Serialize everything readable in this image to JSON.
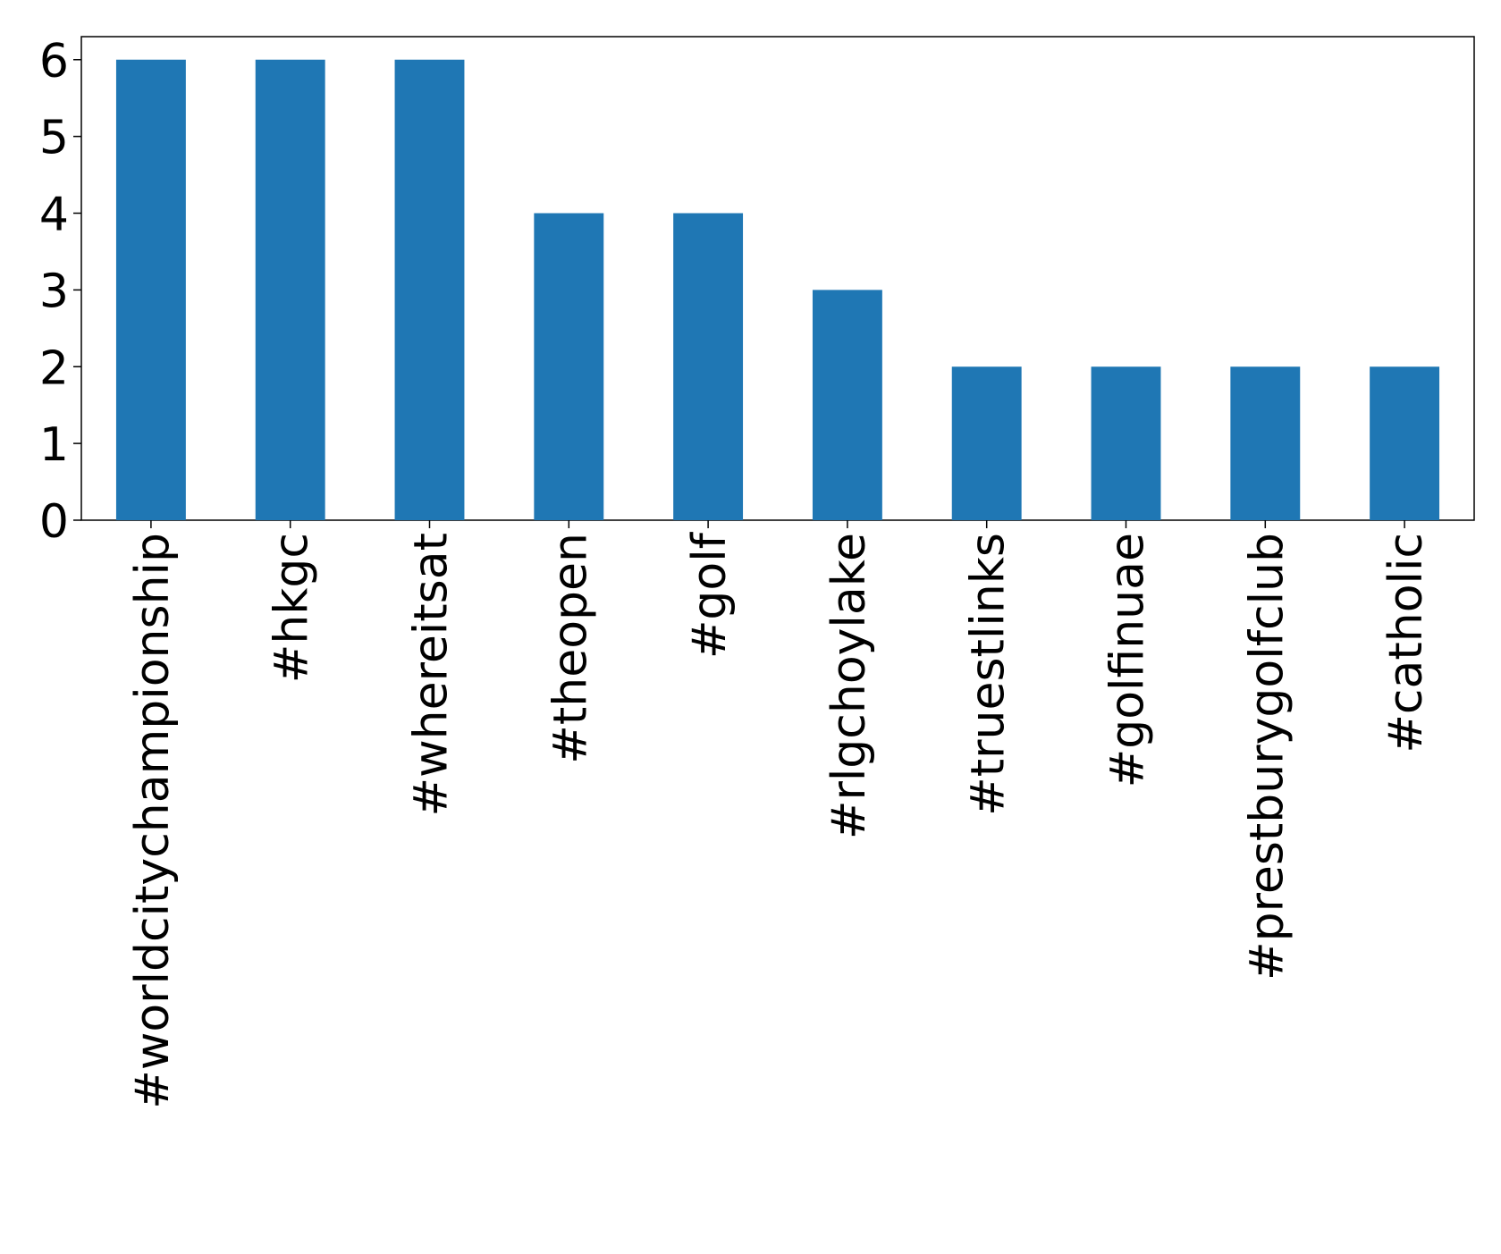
{
  "chart_data": {
    "type": "bar",
    "categories": [
      "#worldcitychampionship",
      "#hkgc",
      "#whereitsat",
      "#theopen",
      "#golf",
      "#rlgchoylake",
      "#truestlinks",
      "#golfinuae",
      "#prestburygolfclub",
      "#catholic"
    ],
    "values": [
      6,
      6,
      6,
      4,
      4,
      3,
      2,
      2,
      2,
      2
    ],
    "color": "#1f77b4",
    "ylim": [
      0,
      6.3
    ],
    "yticks": [
      0,
      1,
      2,
      3,
      4,
      5,
      6
    ],
    "grid": false
  }
}
